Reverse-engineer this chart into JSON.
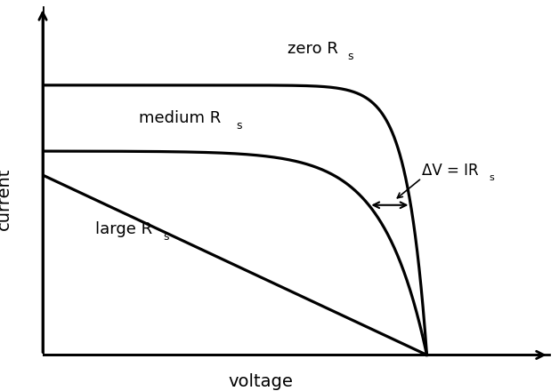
{
  "xlabel": "voltage",
  "ylabel": "current",
  "background_color": "#ffffff",
  "text_color": "#000000",
  "curve_color": "#000000",
  "axis_color": "#000000",
  "figsize": [
    6.28,
    4.4
  ],
  "dpi": 100,
  "xlim": [
    0,
    1.18
  ],
  "ylim": [
    -0.08,
    1.18
  ],
  "isc_zero": 0.9,
  "isc_medium": 0.68,
  "isc_large": 0.6,
  "voc": 0.88,
  "n_zero": 22,
  "n_medium": 10
}
